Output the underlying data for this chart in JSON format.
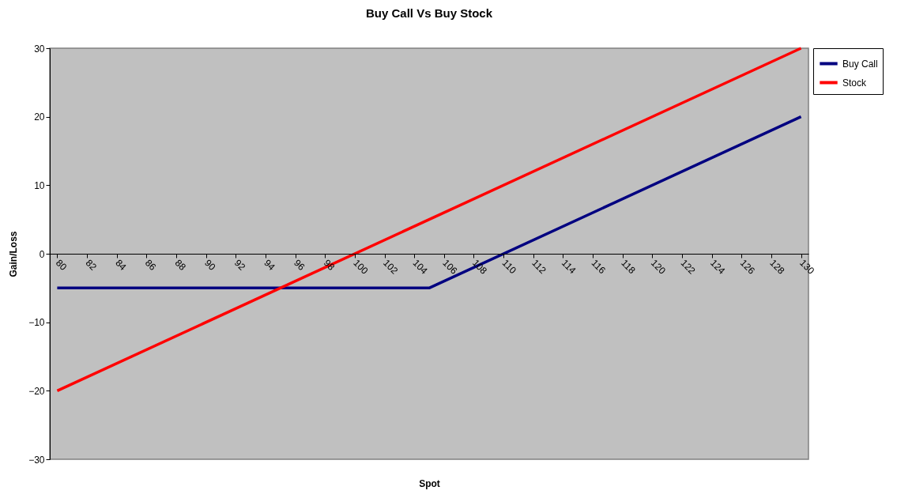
{
  "chart_data": {
    "type": "line",
    "title": "Buy Call Vs Buy Stock",
    "xlabel": "Spot",
    "ylabel": "Gain/Loss",
    "series": [
      {
        "name": "Buy Call",
        "color": "#000080",
        "x": [
          80,
          105,
          130
        ],
        "values": [
          -5,
          -5,
          20
        ]
      },
      {
        "name": "Stock",
        "color": "#ff0000",
        "x": [
          80,
          130
        ],
        "values": [
          -20,
          30
        ]
      }
    ],
    "xlim": [
      79.5,
      130.5
    ],
    "xticks": [
      80,
      82,
      84,
      86,
      88,
      90,
      92,
      94,
      96,
      98,
      100,
      102,
      104,
      106,
      108,
      110,
      112,
      114,
      116,
      118,
      120,
      122,
      124,
      126,
      128,
      130
    ],
    "ylim": [
      -30,
      30
    ],
    "yticks": [
      -30,
      -20,
      -10,
      0,
      10,
      20,
      30
    ],
    "grid": false,
    "legend": "right",
    "marker": "none",
    "line_style": "solid"
  }
}
